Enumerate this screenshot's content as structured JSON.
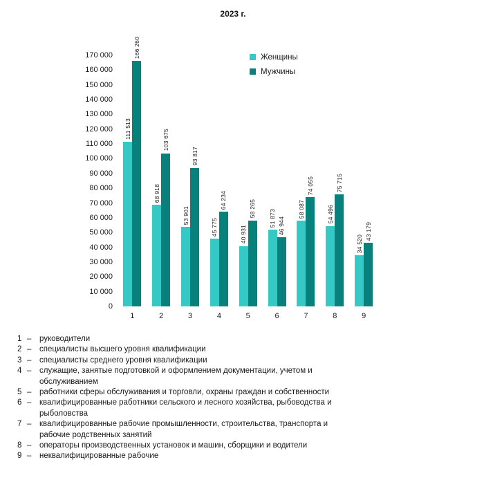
{
  "title": "2023 г.",
  "colors": {
    "women": "#35C8C5",
    "men": "#08807B",
    "text": "#1a1a1a",
    "background": "#ffffff"
  },
  "legend": {
    "items": [
      {
        "label": "Женщины",
        "color_key": "women"
      },
      {
        "label": "Мужчины",
        "color_key": "men"
      }
    ]
  },
  "chart_data": {
    "type": "bar",
    "title": "2023 г.",
    "categories": [
      "1",
      "2",
      "3",
      "4",
      "5",
      "6",
      "7",
      "8",
      "9"
    ],
    "series": [
      {
        "name": "Женщины",
        "color_key": "women",
        "values": [
          111513,
          68918,
          53901,
          45775,
          40931,
          51873,
          58087,
          54496,
          34520
        ]
      },
      {
        "name": "Мужчины",
        "color_key": "men",
        "values": [
          166260,
          103675,
          93817,
          64234,
          58265,
          46944,
          74055,
          75715,
          43179
        ]
      }
    ],
    "xlabel": "",
    "ylabel": "",
    "ylim": [
      0,
      170000
    ],
    "ytick_step": 10000,
    "grid": false,
    "legend_position": "upper-right",
    "value_labels": "rotated-90-above-bars",
    "number_format": "space-thousands"
  },
  "footnotes": [
    {
      "num": "1",
      "dash": "–",
      "text": "руководители"
    },
    {
      "num": "2",
      "dash": "–",
      "text": "специалисты высшего уровня квалификации"
    },
    {
      "num": "3",
      "dash": "–",
      "text": "специалисты среднего уровня квалификации"
    },
    {
      "num": "4",
      "dash": "–",
      "text": "служащие, занятые подготовкой и оформлением документации, учетом и обслуживанием"
    },
    {
      "num": "5",
      "dash": "–",
      "text": "работники сферы обслуживания и торговли, охраны граждан и собственности"
    },
    {
      "num": "6",
      "dash": "–",
      "text": "квалифицированные работники сельского и лесного хозяйства, рыбоводства и рыболовства"
    },
    {
      "num": "7",
      "dash": "–",
      "text": "квалифицированные рабочие промышленности, строительства, транспорта и рабочие родственных занятий"
    },
    {
      "num": "8",
      "dash": "–",
      "text": "операторы производственных установок и машин, сборщики и водители"
    },
    {
      "num": "9",
      "dash": "–",
      "text": "неквалифицированные рабочие"
    }
  ]
}
